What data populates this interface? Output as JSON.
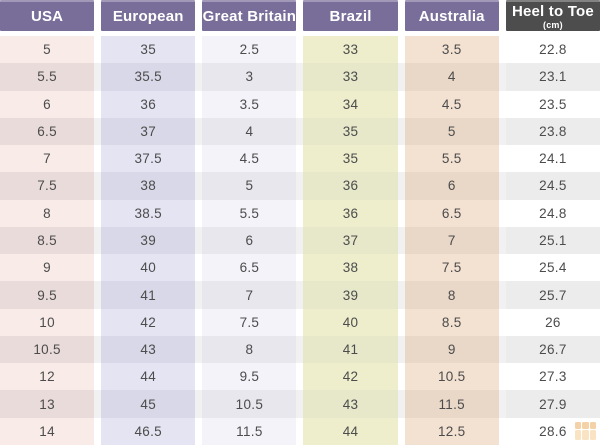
{
  "chart_data": {
    "type": "table",
    "columns": [
      {
        "id": "usa",
        "label": "USA"
      },
      {
        "id": "european",
        "label": "European"
      },
      {
        "id": "great-britain",
        "label": "Great Britain"
      },
      {
        "id": "brazil",
        "label": "Brazil"
      },
      {
        "id": "australia",
        "label": "Australia"
      },
      {
        "id": "heel-to-toe",
        "label": "Heel to Toe",
        "sublabel": "(cm)"
      }
    ],
    "rows": [
      [
        "5",
        "35",
        "2.5",
        "33",
        "3.5",
        "22.8"
      ],
      [
        "5.5",
        "35.5",
        "3",
        "33",
        "4",
        "23.1"
      ],
      [
        "6",
        "36",
        "3.5",
        "34",
        "4.5",
        "23.5"
      ],
      [
        "6.5",
        "37",
        "4",
        "35",
        "5",
        "23.8"
      ],
      [
        "7",
        "37.5",
        "4.5",
        "35",
        "5.5",
        "24.1"
      ],
      [
        "7.5",
        "38",
        "5",
        "36",
        "6",
        "24.5"
      ],
      [
        "8",
        "38.5",
        "5.5",
        "36",
        "6.5",
        "24.8"
      ],
      [
        "8.5",
        "39",
        "6",
        "37",
        "7",
        "25.1"
      ],
      [
        "9",
        "40",
        "6.5",
        "38",
        "7.5",
        "25.4"
      ],
      [
        "9.5",
        "41",
        "7",
        "39",
        "8",
        "25.7"
      ],
      [
        "10",
        "42",
        "7.5",
        "40",
        "8.5",
        "26"
      ],
      [
        "10.5",
        "43",
        "8",
        "41",
        "9",
        "26.7"
      ],
      [
        "12",
        "44",
        "9.5",
        "42",
        "10.5",
        "27.3"
      ],
      [
        "13",
        "45",
        "10.5",
        "43",
        "11.5",
        "27.9"
      ],
      [
        "14",
        "46.5",
        "11.5",
        "44",
        "12.5",
        "28.6"
      ]
    ]
  },
  "colors": {
    "header_purple": "#796e99",
    "header_dark": "#4d4d4d",
    "header_text": "#ffffff",
    "cell_text": "#4c4c4c",
    "column_odd": [
      "#f9ebe8",
      "#e5e4f3",
      "#f3f3f9",
      "#eeeecd",
      "#f3e1d1",
      "#ffffff"
    ],
    "column_even": [
      "#e9dbd9",
      "#d9d8e8",
      "#e7e7ed",
      "#e7e7ca",
      "#e9d7c8",
      "#ececec"
    ],
    "watermark_top": "#e89a3c",
    "watermark_bottom": "#f6c27a"
  }
}
